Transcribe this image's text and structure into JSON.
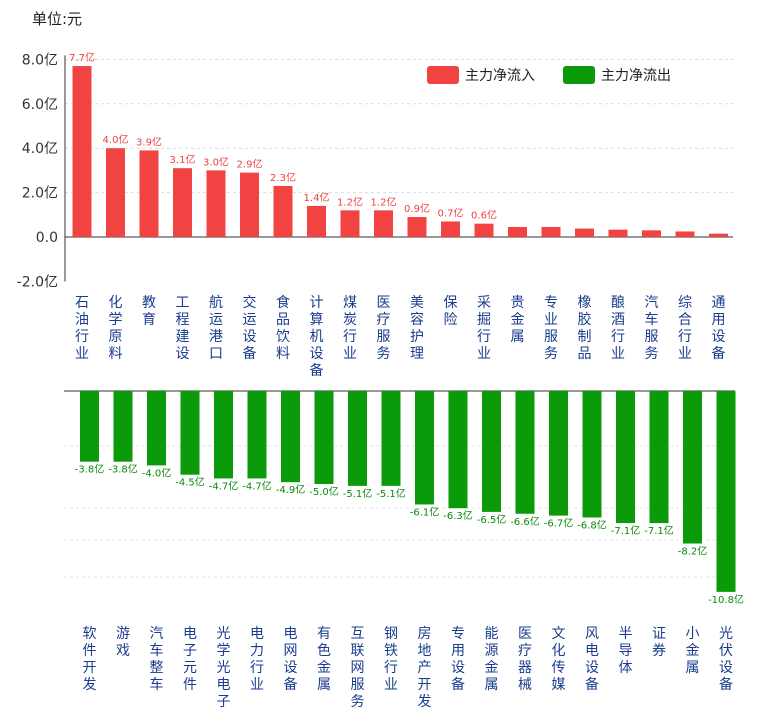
{
  "unit_label": "单位:元",
  "colors": {
    "inflow": "#f24343",
    "outflow": "#0a9a0a",
    "category": "#1a3d8f"
  },
  "chart_data": [
    {
      "type": "bar",
      "title": "",
      "unit": "亿",
      "legend": [
        {
          "name": "主力净流入",
          "color": "#f24343"
        },
        {
          "name": "主力净流出",
          "color": "#0a9a0a"
        }
      ],
      "legend_position": "top-right",
      "ylim": [
        -2,
        8
      ],
      "yticks": [
        "8.0亿",
        "6.0亿",
        "4.0亿",
        "2.0亿",
        "0.0",
        "-2.0亿"
      ],
      "categories": [
        "石油行业",
        "化学原料",
        "教育",
        "工程建设",
        "航运港口",
        "交运设备",
        "食品饮料",
        "计算机设备",
        "煤炭行业",
        "医疗服务",
        "美容护理",
        "保险",
        "采掘行业",
        "贵金属",
        "专业服务",
        "橡胶制品",
        "酿酒行业",
        "汽车服务",
        "综合行业",
        "通用设备"
      ],
      "values": [
        7.7,
        4.0,
        3.9,
        3.1,
        3.0,
        2.9,
        2.3,
        1.4,
        1.2,
        1.2,
        0.9,
        0.7,
        0.6,
        0.45,
        0.45,
        0.38,
        0.33,
        0.3,
        0.25,
        0.15
      ],
      "labels": [
        "7.7亿",
        "4.0亿",
        "3.9亿",
        "3.1亿",
        "3.0亿",
        "2.9亿",
        "2.3亿",
        "1.4亿",
        "1.2亿",
        "1.2亿",
        "0.9亿",
        "0.7亿",
        "0.6亿",
        "",
        "",
        "",
        "",
        "",
        "",
        ""
      ]
    },
    {
      "type": "bar",
      "title": "",
      "unit": "亿",
      "categories": [
        "软件开发",
        "游戏",
        "汽车整车",
        "电子元件",
        "光学光电子",
        "电力行业",
        "电网设备",
        "有色金属",
        "互联网服务",
        "钢铁行业",
        "房地产开发",
        "专用设备",
        "能源金属",
        "医疗器械",
        "文化传媒",
        "风电设备",
        "半导体",
        "证券",
        "小金属",
        "光伏设备"
      ],
      "values": [
        -3.8,
        -3.8,
        -4.0,
        -4.5,
        -4.7,
        -4.7,
        -4.9,
        -5.0,
        -5.1,
        -5.1,
        -6.1,
        -6.3,
        -6.5,
        -6.6,
        -6.7,
        -6.8,
        -7.1,
        -7.1,
        -8.2,
        -10.8
      ],
      "labels": [
        "-3.8亿",
        "-3.8亿",
        "-4.0亿",
        "-4.5亿",
        "-4.7亿",
        "-4.7亿",
        "-4.9亿",
        "-5.0亿",
        "-5.1亿",
        "-5.1亿",
        "-6.1亿",
        "-6.3亿",
        "-6.5亿",
        "-6.6亿",
        "-6.7亿",
        "-6.8亿",
        "-7.1亿",
        "-7.1亿",
        "-8.2亿",
        "-10.8亿"
      ]
    }
  ]
}
